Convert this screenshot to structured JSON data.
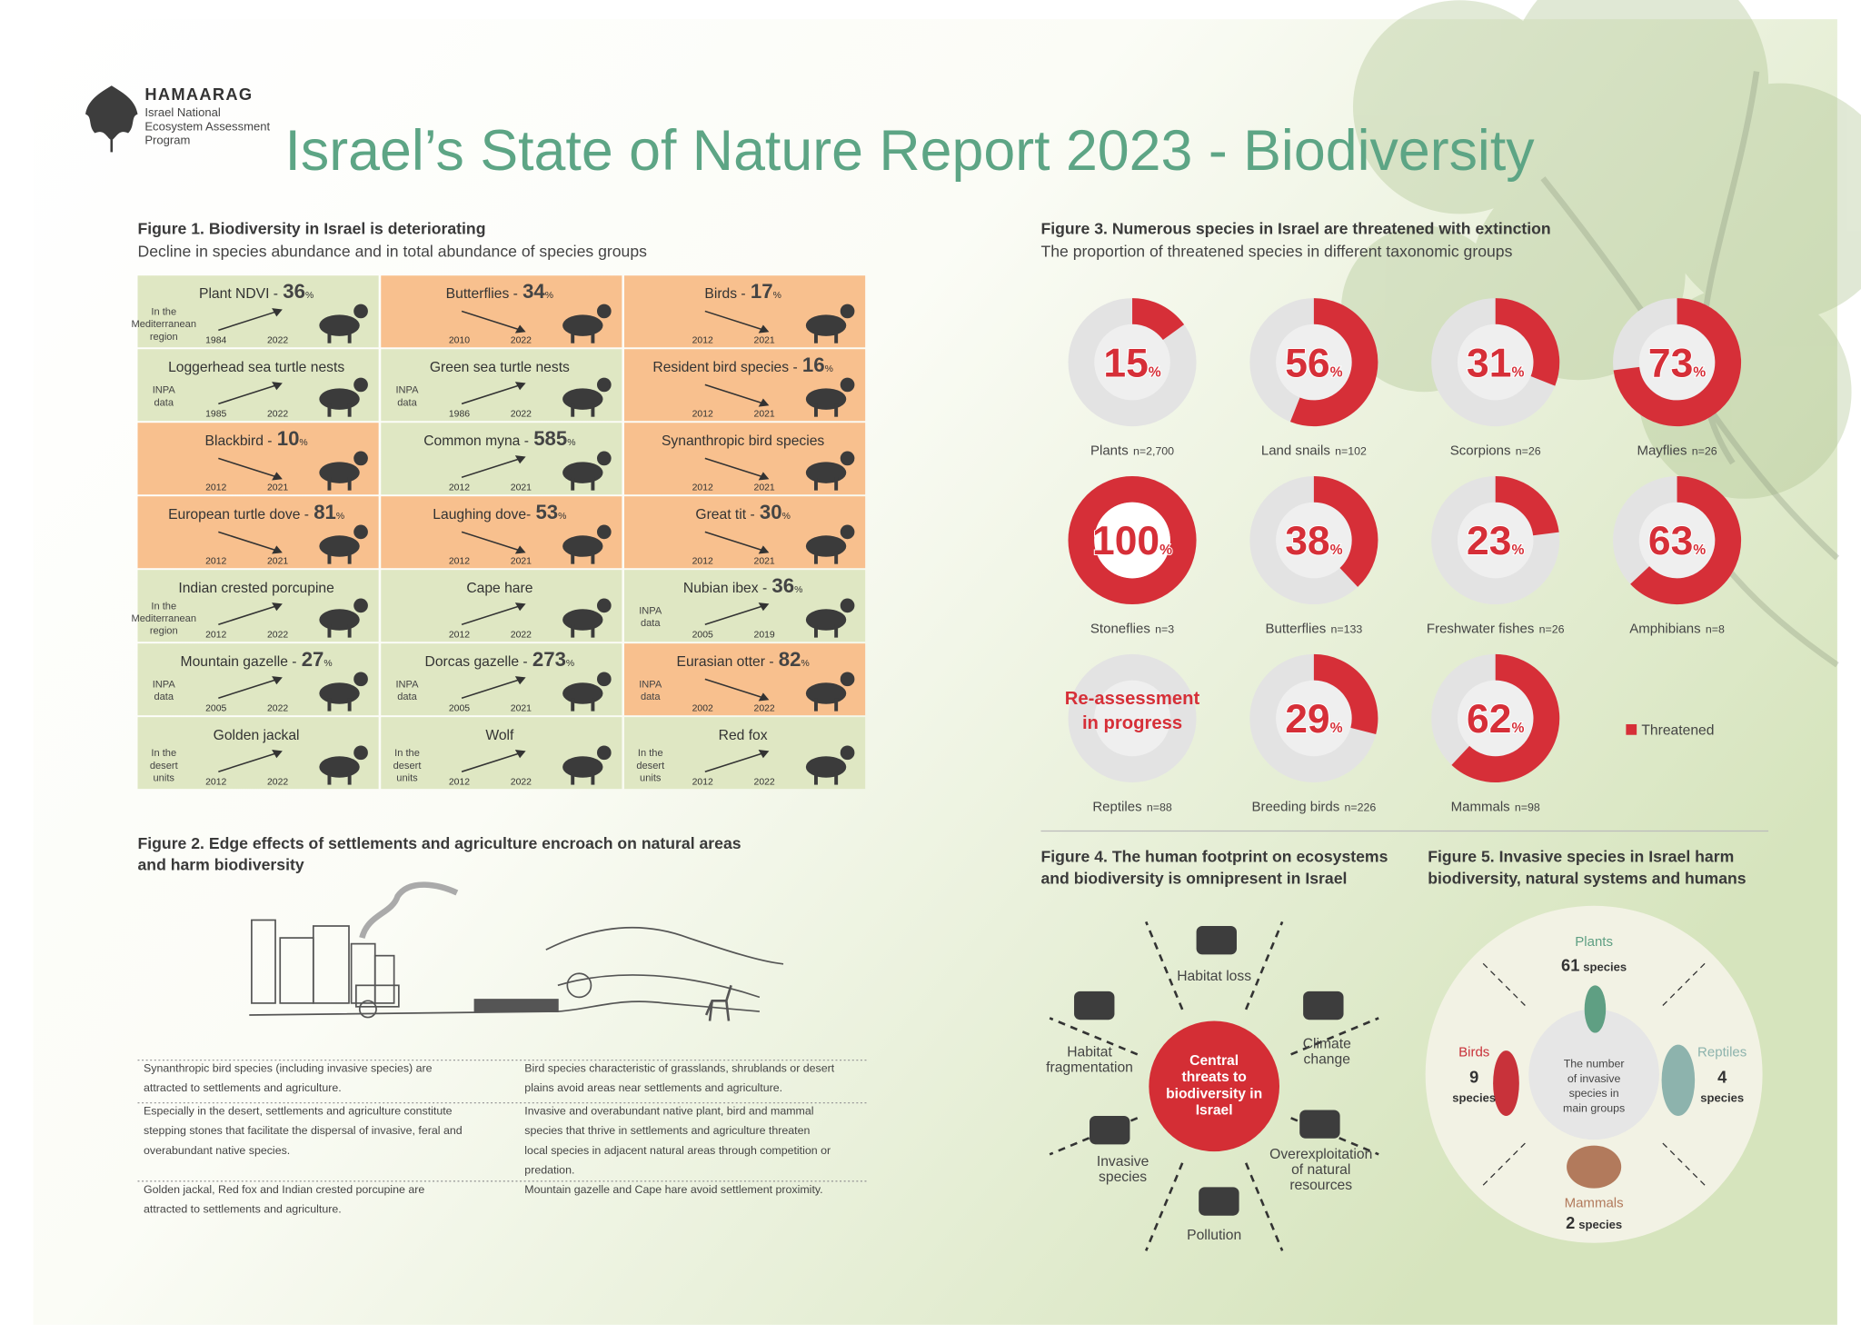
{
  "header": {
    "org": "HAMAARAG",
    "org_sub": [
      "Israel National",
      "Ecosystem Assessment",
      "Program"
    ],
    "title": "Israel’s State of Nature Report 2023 - Biodiversity"
  },
  "figure1": {
    "title": "Figure 1. Biodiversity in Israel is deteriorating",
    "subtitle": "Decline in species abundance and in total abundance of species groups",
    "trend_colors": {
      "up": "#dfe7c3",
      "down": "#f8c08e"
    },
    "cells": [
      {
        "name": "Plant NDVI -",
        "value": 36,
        "unit": "%",
        "trend": "up",
        "note": [
          "In the",
          "Mediterranean",
          "region"
        ],
        "from": "1984",
        "to": "2022"
      },
      {
        "name": "Butterflies -",
        "value": 34,
        "unit": "%",
        "trend": "down",
        "from": "2010",
        "to": "2022"
      },
      {
        "name": "Birds -",
        "value": 17,
        "unit": "%",
        "trend": "down",
        "from": "2012",
        "to": "2021"
      },
      {
        "name": "Loggerhead sea turtle nests",
        "trend": "up",
        "note": [
          "INPA",
          "data"
        ],
        "from": "1985",
        "to": "2022"
      },
      {
        "name": "Green sea turtle nests",
        "trend": "up",
        "note": [
          "INPA",
          "data"
        ],
        "from": "1986",
        "to": "2022"
      },
      {
        "name": "Resident bird species -",
        "value": 16,
        "unit": "%",
        "trend": "down",
        "from": "2012",
        "to": "2021"
      },
      {
        "name": "Blackbird -",
        "value": 10,
        "unit": "%",
        "trend": "down",
        "from": "2012",
        "to": "2021"
      },
      {
        "name": "Common myna -",
        "value": 585,
        "unit": "%",
        "trend": "up",
        "from": "2012",
        "to": "2021"
      },
      {
        "name": "Synanthropic bird species",
        "trend": "down",
        "from": "2012",
        "to": "2021"
      },
      {
        "name": "European turtle dove -",
        "value": 81,
        "unit": "%",
        "trend": "down",
        "from": "2012",
        "to": "2021"
      },
      {
        "name": "Laughing dove-",
        "value": 53,
        "unit": "%",
        "trend": "down",
        "from": "2012",
        "to": "2021"
      },
      {
        "name": "Great tit -",
        "value": 30,
        "unit": "%",
        "trend": "down",
        "from": "2012",
        "to": "2021"
      },
      {
        "name": "Indian crested porcupine",
        "trend": "up",
        "note": [
          "In the",
          "Mediterranean",
          "region"
        ],
        "from": "2012",
        "to": "2022"
      },
      {
        "name": "Cape hare",
        "trend": "up",
        "from": "2012",
        "to": "2022"
      },
      {
        "name": "Nubian ibex -",
        "value": 36,
        "unit": "%",
        "trend": "up",
        "note": [
          "INPA",
          "data"
        ],
        "from": "2005",
        "to": "2019"
      },
      {
        "name": "Mountain gazelle -",
        "value": 27,
        "unit": "%",
        "trend": "up",
        "note": [
          "INPA",
          "data"
        ],
        "from": "2005",
        "to": "2022"
      },
      {
        "name": "Dorcas gazelle -",
        "value": 273,
        "unit": "%",
        "trend": "up",
        "note": [
          "INPA",
          "data"
        ],
        "from": "2005",
        "to": "2021"
      },
      {
        "name": "Eurasian otter -",
        "value": 82,
        "unit": "%",
        "trend": "down",
        "note": [
          "INPA",
          "data"
        ],
        "from": "2002",
        "to": "2022"
      },
      {
        "name": "Golden jackal",
        "trend": "up",
        "note": [
          "In the",
          "desert",
          "units"
        ],
        "from": "2012",
        "to": "2022"
      },
      {
        "name": "Wolf",
        "trend": "up",
        "note": [
          "In the",
          "desert",
          "units"
        ],
        "from": "2012",
        "to": "2022"
      },
      {
        "name": "Red fox",
        "trend": "up",
        "note": [
          "In the",
          "desert",
          "units"
        ],
        "from": "2012",
        "to": "2022"
      }
    ]
  },
  "figure2": {
    "title": [
      "Figure 2. Edge effects of settlements and agriculture encroach on natural areas",
      "and harm biodiversity"
    ],
    "rows": [
      [
        [
          "Synanthropic bird species (including invasive species) are",
          "attracted to settlements and agriculture."
        ],
        [
          "Bird species characteristic of grasslands, shrublands or desert",
          "plains avoid areas near settlements and agriculture."
        ]
      ],
      [
        [
          "Especially in the desert, settlements and agriculture constitute",
          "stepping stones that facilitate the dispersal of invasive, feral and",
          "overabundant native species."
        ],
        [
          "Invasive and overabundant native plant, bird and mammal",
          "species that thrive in settlements and agriculture threaten",
          "local species in adjacent natural areas through competition or",
          "predation."
        ]
      ],
      [
        [
          "Golden jackal, Red fox and Indian crested porcupine are",
          "attracted to settlements and agriculture."
        ],
        [
          "Mountain gazelle and Cape hare avoid settlement proximity."
        ]
      ]
    ]
  },
  "figure3": {
    "title": "Figure 3. Numerous species in Israel are threatened with extinction",
    "subtitle": "The proportion of threatened species in different taxonomic groups",
    "color": "#d62f38",
    "legend": "Threatened",
    "groups": [
      {
        "name": "Plants",
        "n": "n=2,700",
        "value": 15,
        "unit": "%"
      },
      {
        "name": "Land snails",
        "n": "n=102",
        "value": 56,
        "unit": "%"
      },
      {
        "name": "Scorpions",
        "n": "n=26",
        "value": 31,
        "unit": "%"
      },
      {
        "name": "Mayflies",
        "n": "n=26",
        "value": 73,
        "unit": "%"
      },
      {
        "name": "Stoneflies",
        "n": "n=3",
        "value": 100,
        "unit": "%"
      },
      {
        "name": "Butterflies",
        "n": "n=133",
        "value": 38,
        "unit": "%"
      },
      {
        "name": "Freshwater fishes",
        "n": "n=26",
        "value": 23,
        "unit": "%"
      },
      {
        "name": "Amphibians",
        "n": "n=8",
        "value": 63,
        "unit": "%"
      },
      {
        "name": "Reptiles",
        "n": "n=88",
        "value": null,
        "status": [
          "Re-assessment",
          "in progress"
        ]
      },
      {
        "name": "Breeding birds",
        "n": "n=226",
        "value": 29,
        "unit": "%"
      },
      {
        "name": "Mammals",
        "n": "n=98",
        "value": 62,
        "unit": "%"
      }
    ]
  },
  "figure4": {
    "title": [
      "Figure 4. The human footprint on ecosystems",
      "and biodiversity is omnipresent in Israel"
    ],
    "center": [
      "Central",
      "threats to",
      "biodiversity in",
      "Israel"
    ],
    "threats": [
      [
        "Habitat loss"
      ],
      [
        "Climate",
        "change"
      ],
      [
        "Overexploitation",
        "of natural",
        "resources"
      ],
      [
        "Pollution"
      ],
      [
        "Invasive",
        "species"
      ],
      [
        "Habitat",
        "fragmentation"
      ]
    ]
  },
  "figure5": {
    "title": [
      "Figure 5. Invasive species in Israel harm",
      "biodiversity, natural systems and humans"
    ],
    "center": [
      "The number",
      "of invasive",
      "species in",
      "main groups"
    ],
    "groups": [
      {
        "name": "Plants",
        "count": 61,
        "unit": "species",
        "color": "#5f9f83"
      },
      {
        "name": "Reptiles",
        "count": 4,
        "unit": "species",
        "color": "#8db3ad"
      },
      {
        "name": "Mammals",
        "count": 2,
        "unit": "species",
        "color": "#b27a5c"
      },
      {
        "name": "Birds",
        "count": 9,
        "unit": "species",
        "color": "#c8323a"
      }
    ]
  }
}
